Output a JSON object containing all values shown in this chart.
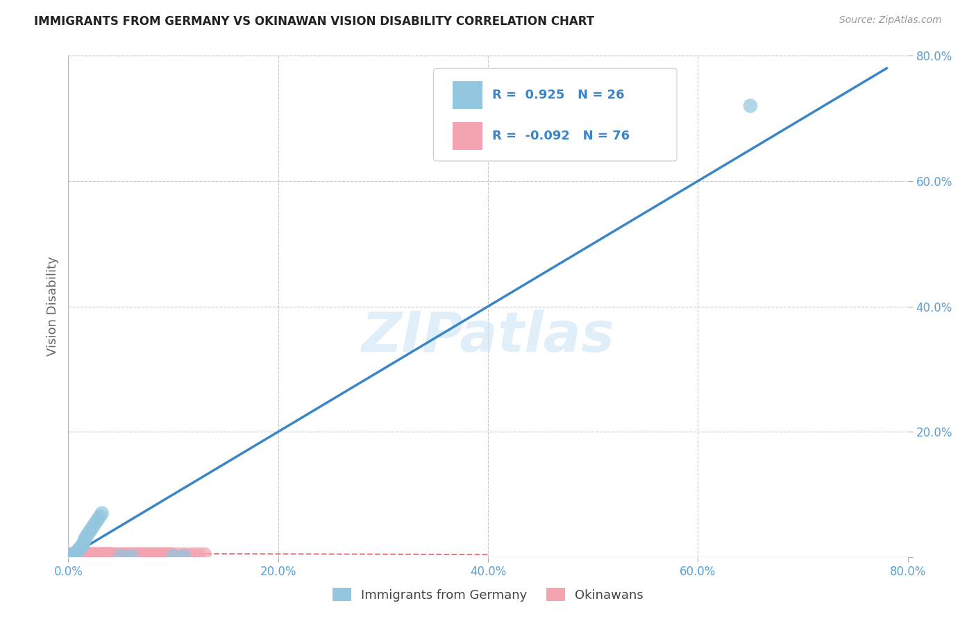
{
  "title": "IMMIGRANTS FROM GERMANY VS OKINAWAN VISION DISABILITY CORRELATION CHART",
  "source": "Source: ZipAtlas.com",
  "ylabel": "Vision Disability",
  "watermark": "ZIPatlas",
  "xlim": [
    0.0,
    0.8
  ],
  "ylim": [
    0.0,
    0.8
  ],
  "xticks": [
    0.0,
    0.2,
    0.4,
    0.6,
    0.8
  ],
  "yticks": [
    0.0,
    0.2,
    0.4,
    0.6,
    0.8
  ],
  "xtick_labels": [
    "0.0%",
    "20.0%",
    "40.0%",
    "60.0%",
    "80.0%"
  ],
  "ytick_labels": [
    "",
    "20.0%",
    "40.0%",
    "60.0%",
    "80.0%"
  ],
  "blue_color": "#92c5de",
  "pink_color": "#f4a4b0",
  "line_color": "#3a85c8",
  "pink_line_color": "#e07a8a",
  "grid_color": "#c8c8d0",
  "background_color": "#ffffff",
  "legend_R1": "0.925",
  "legend_N1": "26",
  "legend_R2": "-0.092",
  "legend_N2": "76",
  "legend_label1": "Immigrants from Germany",
  "legend_label2": "Okinawans",
  "blue_scatter_x": [
    0.003,
    0.005,
    0.006,
    0.007,
    0.008,
    0.009,
    0.01,
    0.011,
    0.012,
    0.013,
    0.014,
    0.015,
    0.016,
    0.018,
    0.02,
    0.022,
    0.024,
    0.026,
    0.028,
    0.03,
    0.032,
    0.05,
    0.06,
    0.1,
    0.11,
    0.65
  ],
  "blue_scatter_y": [
    0.003,
    0.004,
    0.006,
    0.007,
    0.008,
    0.01,
    0.012,
    0.014,
    0.016,
    0.018,
    0.02,
    0.025,
    0.03,
    0.035,
    0.04,
    0.045,
    0.05,
    0.055,
    0.06,
    0.065,
    0.07,
    0.002,
    0.002,
    0.002,
    0.002,
    0.72
  ],
  "pink_scatter_x": [
    0.001,
    0.002,
    0.003,
    0.004,
    0.005,
    0.006,
    0.007,
    0.008,
    0.009,
    0.01,
    0.011,
    0.012,
    0.013,
    0.014,
    0.015,
    0.016,
    0.017,
    0.018,
    0.019,
    0.02,
    0.021,
    0.022,
    0.023,
    0.024,
    0.025,
    0.026,
    0.027,
    0.028,
    0.029,
    0.03,
    0.031,
    0.032,
    0.033,
    0.034,
    0.035,
    0.036,
    0.037,
    0.038,
    0.039,
    0.04,
    0.042,
    0.044,
    0.046,
    0.048,
    0.05,
    0.052,
    0.054,
    0.056,
    0.058,
    0.06,
    0.062,
    0.064,
    0.066,
    0.068,
    0.07,
    0.072,
    0.074,
    0.076,
    0.078,
    0.08,
    0.082,
    0.084,
    0.086,
    0.088,
    0.09,
    0.092,
    0.094,
    0.096,
    0.098,
    0.1,
    0.105,
    0.11,
    0.115,
    0.12,
    0.125,
    0.13
  ],
  "pink_scatter_y": [
    0.004,
    0.005,
    0.005,
    0.004,
    0.004,
    0.005,
    0.005,
    0.004,
    0.005,
    0.005,
    0.004,
    0.005,
    0.005,
    0.005,
    0.005,
    0.004,
    0.005,
    0.005,
    0.005,
    0.005,
    0.005,
    0.005,
    0.005,
    0.005,
    0.005,
    0.005,
    0.005,
    0.005,
    0.004,
    0.005,
    0.005,
    0.005,
    0.005,
    0.005,
    0.005,
    0.005,
    0.005,
    0.005,
    0.005,
    0.005,
    0.005,
    0.005,
    0.005,
    0.005,
    0.004,
    0.005,
    0.005,
    0.005,
    0.005,
    0.005,
    0.005,
    0.005,
    0.005,
    0.005,
    0.005,
    0.005,
    0.005,
    0.005,
    0.005,
    0.005,
    0.005,
    0.005,
    0.005,
    0.005,
    0.005,
    0.005,
    0.005,
    0.005,
    0.005,
    0.005,
    0.005,
    0.005,
    0.005,
    0.005,
    0.005,
    0.005
  ],
  "blue_line_x": [
    0.0,
    0.78
  ],
  "blue_line_y": [
    0.0,
    0.78
  ],
  "pink_line_x": [
    0.0,
    0.4
  ],
  "pink_line_y": [
    0.006,
    0.004
  ]
}
